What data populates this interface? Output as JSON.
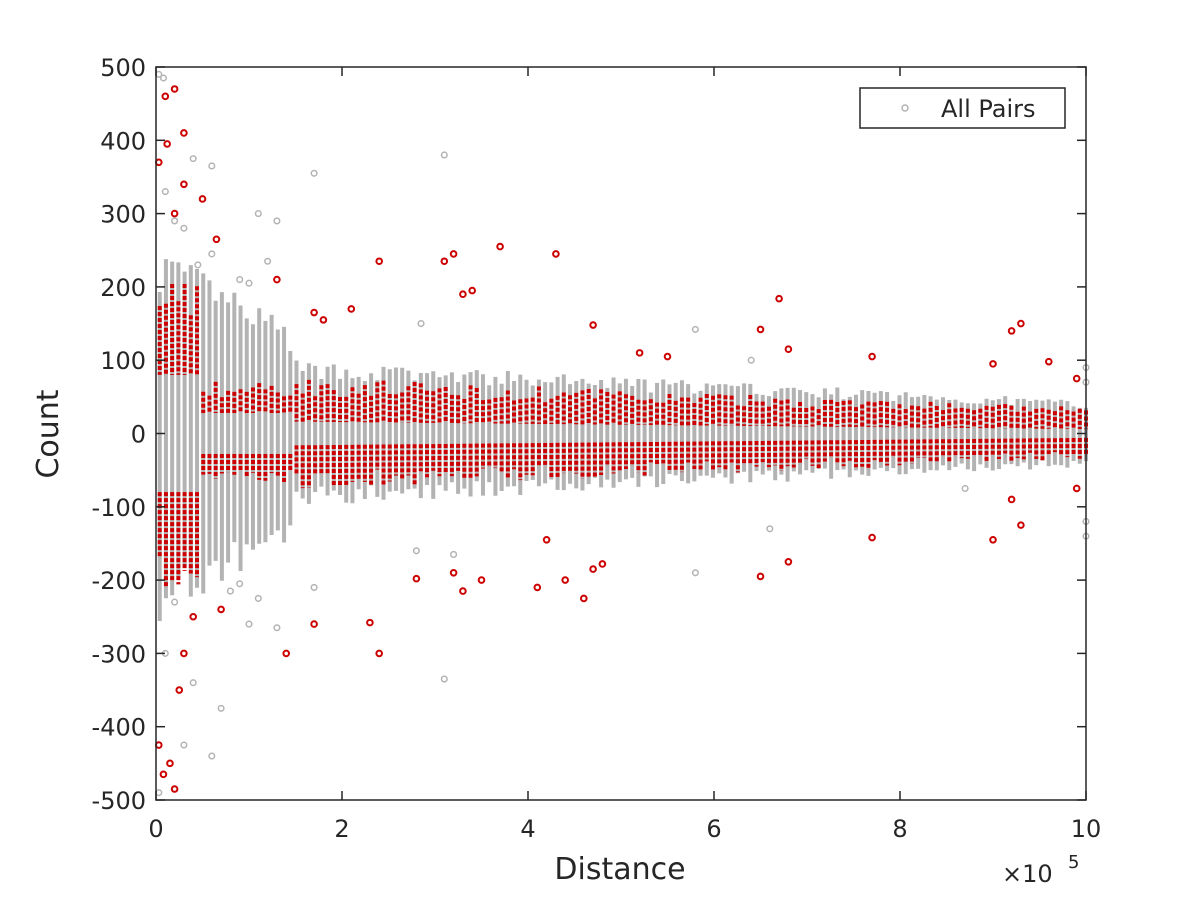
{
  "colors": {
    "all_pairs": "#b3b3b3",
    "highlight": "#cc0000",
    "axis": "#262626",
    "background": "#ffffff"
  },
  "chart_data": {
    "type": "scatter",
    "title": "",
    "xlabel": "Distance",
    "ylabel": "Count",
    "x_exponent_label": "×10",
    "x_exponent_power": "5",
    "xlim": [
      0,
      1000000
    ],
    "ylim": [
      -500,
      500
    ],
    "x_ticks": [
      0,
      200000,
      400000,
      600000,
      800000,
      1000000
    ],
    "x_tick_labels": [
      "0",
      "2",
      "4",
      "6",
      "8",
      "10"
    ],
    "y_ticks": [
      -500,
      -400,
      -300,
      -200,
      -100,
      0,
      100,
      200,
      300,
      400,
      500
    ],
    "y_tick_labels": [
      "-500",
      "-400",
      "-300",
      "-200",
      "-100",
      "0",
      "100",
      "200",
      "300",
      "400",
      "500"
    ],
    "grid": false,
    "legend": {
      "position": "top-right",
      "entries": [
        "All Pairs"
      ]
    },
    "series": [
      {
        "name": "All Pairs",
        "marker": "circle",
        "color": "#b3b3b3",
        "points": [
          [
            3000,
            490
          ],
          [
            8000,
            485
          ],
          [
            10000,
            330
          ],
          [
            20000,
            290
          ],
          [
            30000,
            280
          ],
          [
            40000,
            375
          ],
          [
            45000,
            230
          ],
          [
            60000,
            365
          ],
          [
            60000,
            245
          ],
          [
            90000,
            210
          ],
          [
            100000,
            205
          ],
          [
            110000,
            300
          ],
          [
            120000,
            235
          ],
          [
            130000,
            290
          ],
          [
            170000,
            355
          ],
          [
            285000,
            150
          ],
          [
            310000,
            380
          ],
          [
            580000,
            142
          ],
          [
            640000,
            100
          ],
          [
            1000000,
            90
          ],
          [
            1000000,
            70
          ],
          [
            3000,
            -490
          ],
          [
            10000,
            -300
          ],
          [
            20000,
            -230
          ],
          [
            30000,
            -425
          ],
          [
            40000,
            -340
          ],
          [
            60000,
            -440
          ],
          [
            70000,
            -375
          ],
          [
            80000,
            -215
          ],
          [
            90000,
            -205
          ],
          [
            100000,
            -260
          ],
          [
            110000,
            -225
          ],
          [
            130000,
            -265
          ],
          [
            170000,
            -210
          ],
          [
            280000,
            -160
          ],
          [
            310000,
            -335
          ],
          [
            320000,
            -165
          ],
          [
            580000,
            -190
          ],
          [
            660000,
            -130
          ],
          [
            870000,
            -75
          ],
          [
            1000000,
            -120
          ],
          [
            1000000,
            -140
          ]
        ]
      },
      {
        "name": "",
        "marker": "circle",
        "color": "#cc0000",
        "points": [
          [
            3000,
            370
          ],
          [
            10000,
            460
          ],
          [
            12000,
            395
          ],
          [
            20000,
            470
          ],
          [
            30000,
            410
          ],
          [
            30000,
            340
          ],
          [
            20000,
            300
          ],
          [
            50000,
            320
          ],
          [
            65000,
            265
          ],
          [
            130000,
            210
          ],
          [
            170000,
            165
          ],
          [
            180000,
            155
          ],
          [
            210000,
            170
          ],
          [
            240000,
            235
          ],
          [
            310000,
            235
          ],
          [
            320000,
            245
          ],
          [
            330000,
            190
          ],
          [
            340000,
            195
          ],
          [
            370000,
            255
          ],
          [
            430000,
            245
          ],
          [
            470000,
            148
          ],
          [
            520000,
            110
          ],
          [
            550000,
            105
          ],
          [
            650000,
            142
          ],
          [
            670000,
            184
          ],
          [
            680000,
            115
          ],
          [
            770000,
            105
          ],
          [
            900000,
            95
          ],
          [
            920000,
            140
          ],
          [
            930000,
            150
          ],
          [
            960000,
            98
          ],
          [
            990000,
            75
          ],
          [
            3000,
            -425
          ],
          [
            8000,
            -465
          ],
          [
            15000,
            -450
          ],
          [
            20000,
            -485
          ],
          [
            25000,
            -350
          ],
          [
            30000,
            -300
          ],
          [
            40000,
            -250
          ],
          [
            70000,
            -240
          ],
          [
            140000,
            -300
          ],
          [
            170000,
            -260
          ],
          [
            230000,
            -258
          ],
          [
            240000,
            -300
          ],
          [
            280000,
            -198
          ],
          [
            320000,
            -190
          ],
          [
            330000,
            -215
          ],
          [
            350000,
            -200
          ],
          [
            410000,
            -210
          ],
          [
            420000,
            -145
          ],
          [
            440000,
            -200
          ],
          [
            460000,
            -225
          ],
          [
            470000,
            -185
          ],
          [
            480000,
            -178
          ],
          [
            650000,
            -195
          ],
          [
            680000,
            -175
          ],
          [
            770000,
            -142
          ],
          [
            900000,
            -145
          ],
          [
            920000,
            -90
          ],
          [
            930000,
            -125
          ],
          [
            990000,
            -75
          ]
        ]
      }
    ]
  }
}
